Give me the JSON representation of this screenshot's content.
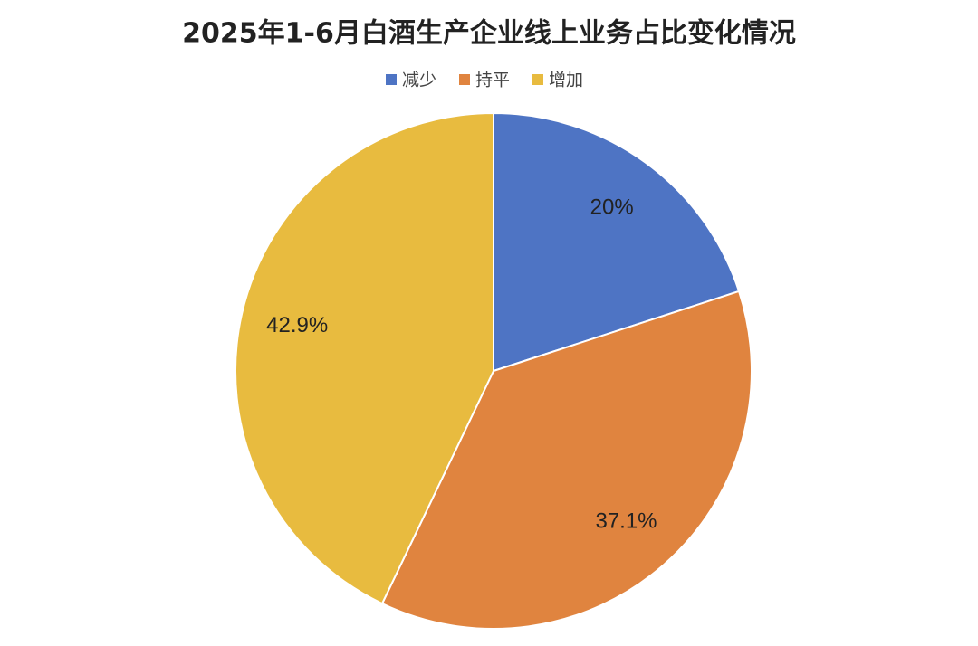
{
  "chart_data": {
    "type": "pie",
    "title": "2025年1-6月白酒生产企业线上业务占比变化情况",
    "categories": [
      "减少",
      "持平",
      "增加"
    ],
    "values": [
      20,
      37.1,
      42.9
    ],
    "value_labels": [
      "20%",
      "37.1%",
      "42.9%"
    ],
    "colors": [
      "#4e74c4",
      "#e0843f",
      "#e8bb3f"
    ]
  }
}
